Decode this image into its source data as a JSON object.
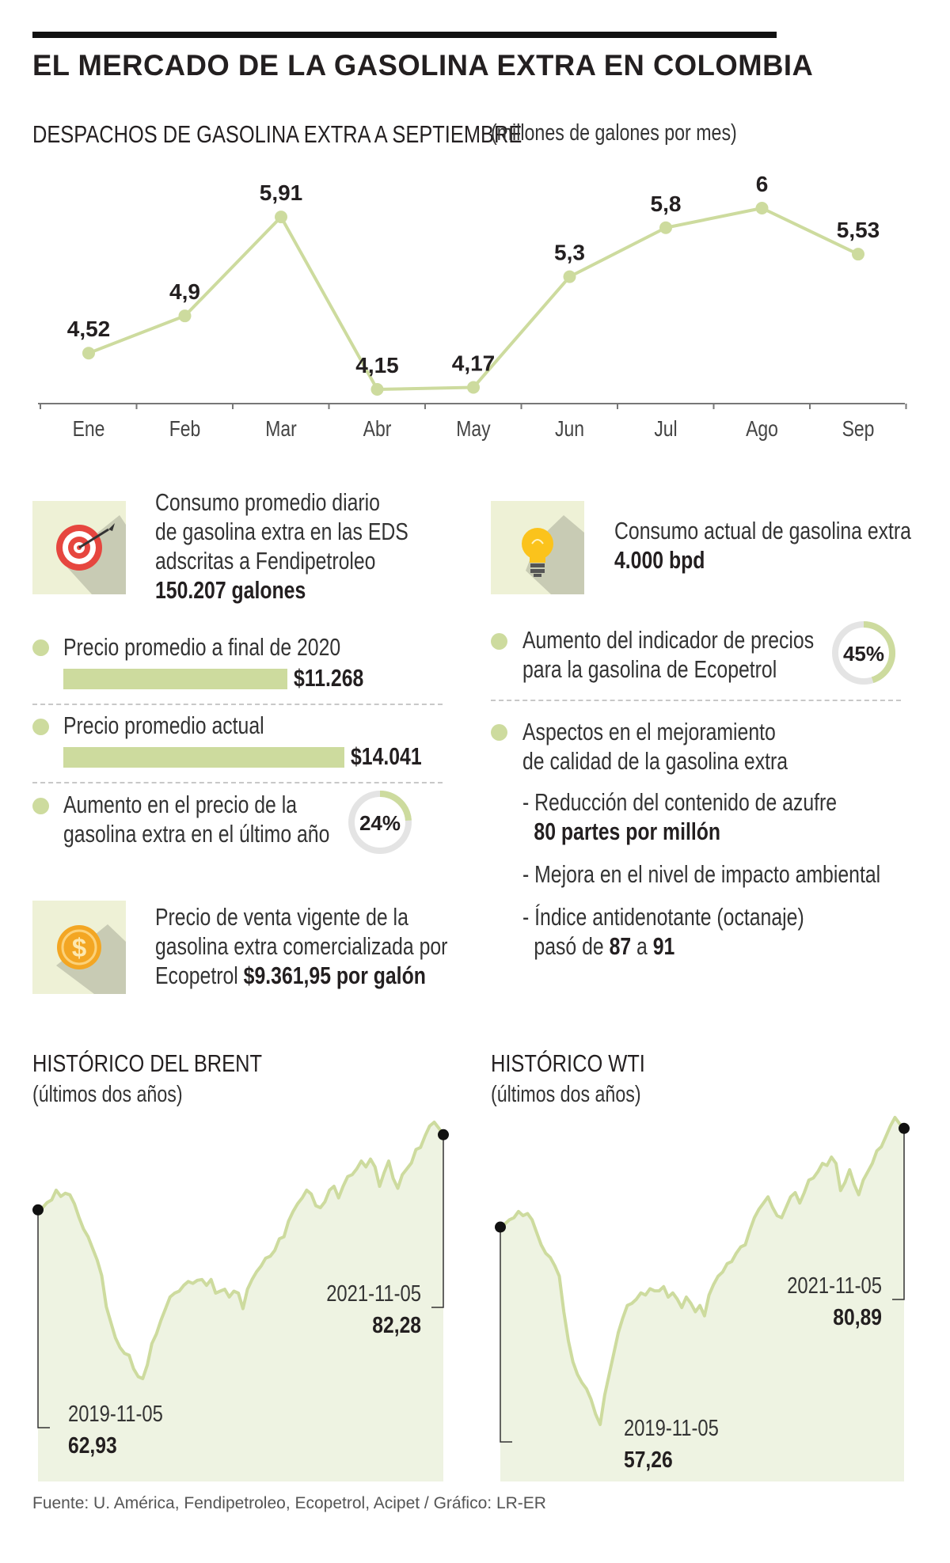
{
  "title": "EL MERCADO DE LA GASOLINA EXTRA EN COLOMBIA",
  "colors": {
    "accent": "#cddb9e",
    "line": "#cddb9e",
    "area": "#eef3e2",
    "text": "#231f20"
  },
  "despachos": {
    "title": "DESPACHOS DE GASOLINA EXTRA A SEPTIEMBRE",
    "unit": "(millones de galones por mes)"
  },
  "chart_data": [
    {
      "type": "line",
      "title": "DESPACHOS DE GASOLINA EXTRA A SEPTIEMBRE",
      "ylabel": "(millones de galones por mes)",
      "categories": [
        "Ene",
        "Feb",
        "Mar",
        "Abr",
        "May",
        "Jun",
        "Jul",
        "Ago",
        "Sep"
      ],
      "values": [
        4.52,
        4.9,
        5.91,
        4.15,
        4.17,
        5.3,
        5.8,
        6.0,
        5.53
      ],
      "labels": [
        "4,52",
        "4,9",
        "5,91",
        "4,15",
        "4,17",
        "5,3",
        "5,8",
        "6",
        "5,53"
      ],
      "ylim": [
        4.15,
        6.0
      ],
      "grid": false
    },
    {
      "type": "area",
      "title": "HISTÓRICO DEL BRENT",
      "subtitle": "(últimos dos años)",
      "start": {
        "date": "2019-11-05",
        "value": 62.93,
        "label": "62,93"
      },
      "end": {
        "date": "2021-11-05",
        "value": 82.28,
        "label": "82,28"
      },
      "series": [
        62.93,
        63.5,
        64.8,
        65.5,
        68.0,
        66.4,
        67.2,
        66.8,
        64.5,
        61.0,
        58.0,
        56.0,
        53.0,
        50.0,
        46.0,
        38.0,
        34.0,
        30.0,
        27.5,
        26.0,
        25.5,
        22.0,
        20.0,
        19.5,
        23.0,
        28.5,
        31.0,
        34.5,
        37.5,
        40.5,
        41.5,
        42.0,
        43.5,
        44.5,
        44.0,
        44.8,
        45.0,
        43.5,
        45.0,
        41.5,
        42.0,
        42.5,
        40.5,
        42.0,
        41.5,
        37.5,
        42.5,
        45.0,
        47.0,
        48.5,
        50.5,
        51.0,
        52.5,
        55.5,
        56.0,
        60.0,
        62.5,
        64.5,
        66.0,
        68.0,
        67.0,
        64.0,
        63.5,
        65.0,
        68.0,
        69.0,
        66.0,
        69.0,
        71.5,
        72.0,
        73.5,
        75.5,
        74.0,
        76.0,
        74.0,
        69.0,
        72.5,
        75.5,
        71.0,
        68.5,
        72.0,
        73.5,
        75.0,
        78.5,
        79.0,
        82.0,
        84.5,
        85.5,
        84.0,
        82.28
      ]
    },
    {
      "type": "area",
      "title": "HISTÓRICO WTI",
      "subtitle": "(últimos dos años)",
      "start": {
        "date": "2019-11-05",
        "value": 57.26,
        "label": "57,26"
      },
      "end": {
        "date": "2021-11-05",
        "value": 80.89,
        "label": "80,89"
      },
      "series": [
        57.26,
        58.0,
        59.0,
        59.5,
        61.0,
        60.0,
        60.5,
        59.0,
        56.0,
        53.0,
        51.0,
        50.0,
        48.0,
        45.5,
        37.0,
        30.0,
        25.0,
        22.0,
        20.0,
        18.5,
        16.0,
        12.5,
        10.0,
        17.0,
        22.0,
        27.0,
        32.0,
        35.5,
        38.5,
        39.0,
        40.0,
        41.5,
        41.0,
        42.5,
        42.0,
        42.0,
        43.0,
        40.5,
        41.5,
        40.0,
        38.0,
        40.5,
        39.0,
        37.0,
        38.5,
        36.0,
        41.0,
        43.5,
        45.5,
        46.5,
        48.5,
        49.0,
        51.0,
        52.5,
        53.0,
        56.5,
        59.5,
        61.5,
        63.0,
        64.5,
        62.0,
        60.0,
        59.5,
        62.0,
        64.5,
        65.5,
        63.0,
        65.5,
        68.5,
        69.0,
        70.5,
        72.5,
        72.0,
        74.0,
        72.5,
        66.0,
        68.0,
        71.0,
        67.5,
        65.0,
        68.5,
        70.5,
        72.5,
        75.5,
        76.5,
        79.0,
        81.5,
        83.5,
        82.0,
        80.89
      ]
    }
  ],
  "stats": {
    "consumo_diario": {
      "lines": [
        "Consumo promedio diario",
        "de gasolina extra en las EDS",
        "adscritas a Fendipetroleo"
      ],
      "value": "150.207 galones",
      "icon": "target-icon"
    },
    "consumo_actual": {
      "line": "Consumo actual de gasolina extra",
      "value": "4.000 bpd",
      "icon": "lightbulb-icon"
    },
    "precio_2020": {
      "label": "Precio promedio a final de 2020",
      "value": "$11.268",
      "amount": 11268
    },
    "precio_actual": {
      "label": "Precio promedio actual",
      "value": "$14.041",
      "amount": 14041
    },
    "aumento_precio": {
      "lines": [
        "Aumento en el precio de la",
        "gasolina extra en el último año"
      ],
      "pct_label": "24%",
      "pct": 24
    },
    "precio_venta": {
      "lines": [
        "Precio de venta vigente de la",
        "gasolina extra comercializada por"
      ],
      "prefix": "Ecopetrol",
      "value": "$9.361,95 por galón",
      "icon": "dollar-coin-icon"
    },
    "indicador": {
      "lines": [
        "Aumento del indicador de precios",
        "para la gasolina de Ecopetrol"
      ],
      "pct_label": "45%",
      "pct": 45
    },
    "aspectos": {
      "lines": [
        "Aspectos en el mejoramiento",
        "de calidad de la gasolina extra"
      ],
      "item1": "- Reducción del contenido de azufre",
      "item1_value": "80 partes por millón",
      "item2": "- Mejora en el nivel de impacto ambiental",
      "item3": "- Índice antidenotante (octanaje)",
      "item3_pre": "pasó de",
      "item3_from": "87",
      "item3_mid": "a",
      "item3_to": "91"
    }
  },
  "brent": {
    "title": "HISTÓRICO DEL BRENT",
    "subtitle": "(últimos dos años)"
  },
  "wti": {
    "title": "HISTÓRICO WTI",
    "subtitle": "(últimos dos años)"
  },
  "source": "Fuente: U. América, Fendipetroleo, Ecopetrol, Acipet / Gráfico: LR-ER"
}
